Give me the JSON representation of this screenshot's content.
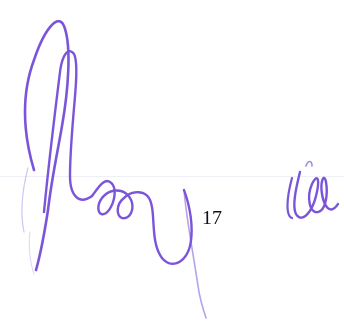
{
  "page": {
    "number_text": "17"
  },
  "signatures": {
    "left": {
      "kind": "handwritten-signature",
      "ink": "#7a55d9"
    },
    "right": {
      "kind": "handwritten-initials",
      "ink": "#7a55d9"
    }
  }
}
